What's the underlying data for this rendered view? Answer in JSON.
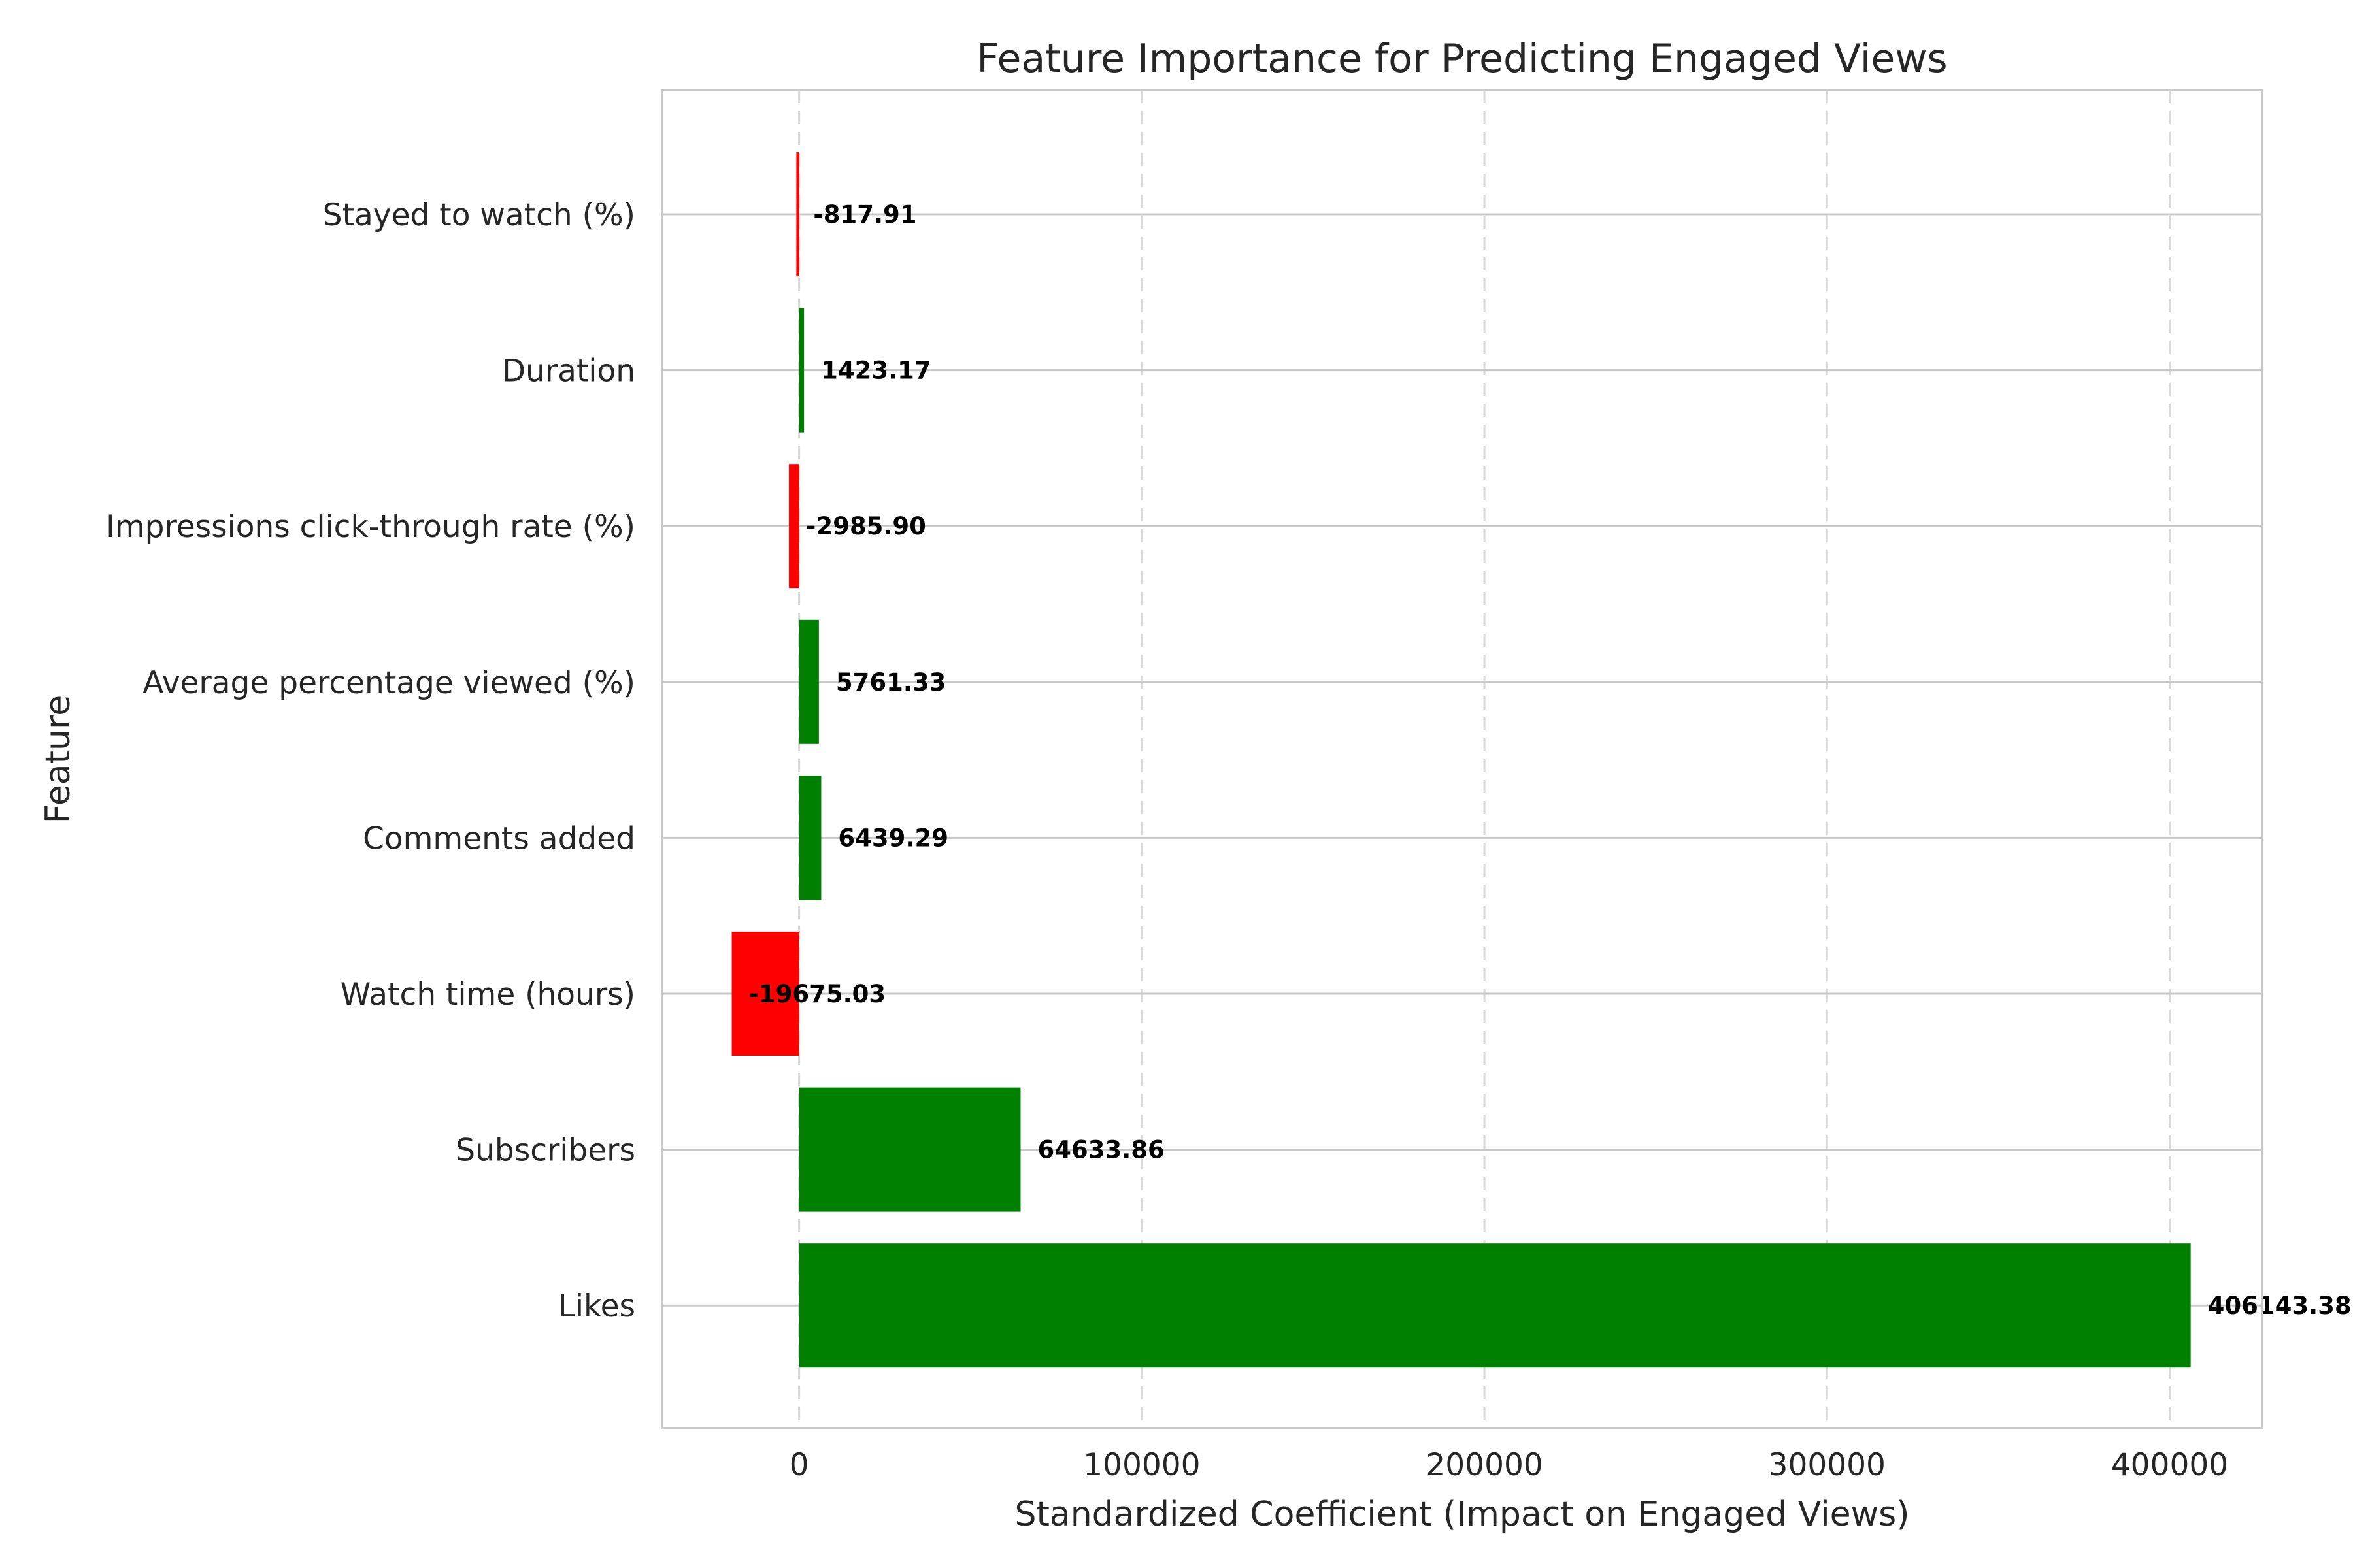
{
  "chart_data": {
    "type": "bar",
    "orientation": "horizontal",
    "title": "Feature Importance for Predicting Engaged Views",
    "xlabel": "Standardized Coefficient (Impact on Engaged Views)",
    "ylabel": "Feature",
    "xlim": [
      -40000,
      427000
    ],
    "xticks": [
      0,
      100000,
      200000,
      300000,
      400000
    ],
    "xtick_labels": [
      "0",
      "100000",
      "200000",
      "300000",
      "400000"
    ],
    "grid": true,
    "positive_color": "#008000",
    "negative_color": "#ff0000",
    "categories": [
      "Stayed to watch (%)",
      "Duration",
      "Impressions click-through rate (%)",
      "Average percentage viewed (%)",
      "Comments added",
      "Watch time (hours)",
      "Subscribers",
      "Likes"
    ],
    "values": [
      -817.91,
      1423.17,
      -2985.9,
      5761.33,
      6439.29,
      -19675.03,
      64633.86,
      406143.38
    ],
    "value_labels": [
      "-817.91",
      "1423.17",
      "-2985.90",
      "5761.33",
      "6439.29",
      "-19675.03",
      "64633.86",
      "406143.38"
    ]
  }
}
